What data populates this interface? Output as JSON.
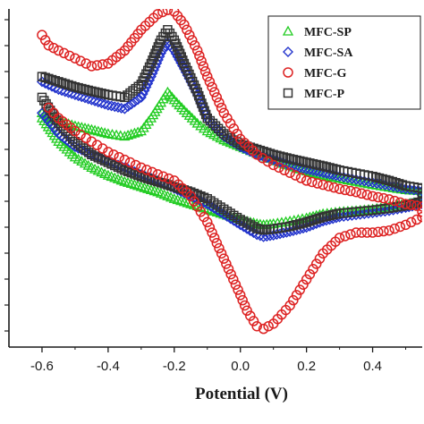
{
  "chart_data": {
    "type": "scatter",
    "title": "",
    "xlabel": "Potential (V)",
    "ylabel": "",
    "xlim": [
      -0.7,
      0.55
    ],
    "ylim": [
      -0.32,
      0.33
    ],
    "x_ticks": [
      -0.6,
      -0.4,
      -0.2,
      0.0,
      0.2,
      0.4
    ],
    "x_tick_labels": [
      "-0.6",
      "-0.4",
      "-0.2",
      "0.0",
      "0.2",
      "0.4"
    ],
    "grid": false,
    "legend": {
      "position": "top-right"
    },
    "series": [
      {
        "name": "MFC-SP",
        "color": "#22cc22",
        "marker": "triangle",
        "x": [
          -0.6,
          -0.55,
          -0.5,
          -0.45,
          -0.4,
          -0.35,
          -0.3,
          -0.27,
          -0.24,
          -0.22,
          -0.2,
          -0.17,
          -0.13,
          -0.1,
          -0.05,
          0.0,
          0.05,
          0.1,
          0.15,
          0.2,
          0.25,
          0.3,
          0.35,
          0.4,
          0.45,
          0.5,
          0.55,
          0.55,
          0.5,
          0.45,
          0.4,
          0.35,
          0.3,
          0.25,
          0.2,
          0.15,
          0.1,
          0.07,
          0.05,
          0.0,
          -0.05,
          -0.1,
          -0.15,
          -0.2,
          -0.25,
          -0.3,
          -0.35,
          -0.4,
          -0.45,
          -0.5,
          -0.55,
          -0.6
        ],
        "y": [
          0.13,
          0.115,
          0.105,
          0.098,
          0.09,
          0.085,
          0.095,
          0.12,
          0.15,
          0.17,
          0.155,
          0.135,
          0.11,
          0.095,
          0.078,
          0.065,
          0.052,
          0.04,
          0.028,
          0.018,
          0.01,
          0.004,
          -0.002,
          -0.008,
          -0.013,
          -0.018,
          -0.02,
          -0.04,
          -0.045,
          -0.05,
          -0.055,
          -0.058,
          -0.06,
          -0.064,
          -0.072,
          -0.078,
          -0.083,
          -0.085,
          -0.083,
          -0.075,
          -0.065,
          -0.055,
          -0.045,
          -0.035,
          -0.022,
          -0.012,
          -0.002,
          0.01,
          0.025,
          0.045,
          0.075,
          0.12
        ]
      },
      {
        "name": "MFC-SA",
        "color": "#2233cc",
        "marker": "diamond",
        "x": [
          -0.6,
          -0.55,
          -0.5,
          -0.45,
          -0.4,
          -0.35,
          -0.3,
          -0.27,
          -0.24,
          -0.22,
          -0.2,
          -0.17,
          -0.13,
          -0.1,
          -0.05,
          0.0,
          0.05,
          0.1,
          0.15,
          0.2,
          0.25,
          0.3,
          0.35,
          0.4,
          0.45,
          0.5,
          0.55,
          0.55,
          0.5,
          0.45,
          0.4,
          0.35,
          0.3,
          0.25,
          0.2,
          0.15,
          0.1,
          0.07,
          0.05,
          0.0,
          -0.05,
          -0.1,
          -0.15,
          -0.2,
          -0.25,
          -0.3,
          -0.35,
          -0.4,
          -0.45,
          -0.5,
          -0.55,
          -0.6
        ],
        "y": [
          0.19,
          0.175,
          0.165,
          0.155,
          0.145,
          0.138,
          0.16,
          0.2,
          0.245,
          0.265,
          0.25,
          0.215,
          0.165,
          0.12,
          0.085,
          0.065,
          0.05,
          0.04,
          0.03,
          0.022,
          0.015,
          0.008,
          0.002,
          -0.004,
          -0.01,
          -0.016,
          -0.02,
          -0.045,
          -0.052,
          -0.058,
          -0.062,
          -0.066,
          -0.07,
          -0.078,
          -0.09,
          -0.098,
          -0.105,
          -0.108,
          -0.104,
          -0.085,
          -0.065,
          -0.045,
          -0.03,
          -0.015,
          0.0,
          0.012,
          0.025,
          0.038,
          0.05,
          0.065,
          0.09,
          0.13
        ]
      },
      {
        "name": "MFC-G",
        "color": "#dd2222",
        "marker": "circle",
        "x": [
          -0.6,
          -0.58,
          -0.55,
          -0.5,
          -0.45,
          -0.4,
          -0.35,
          -0.3,
          -0.25,
          -0.22,
          -0.2,
          -0.17,
          -0.13,
          -0.1,
          -0.05,
          0.0,
          0.05,
          0.1,
          0.15,
          0.2,
          0.25,
          0.3,
          0.35,
          0.4,
          0.45,
          0.5,
          0.55,
          0.55,
          0.5,
          0.45,
          0.4,
          0.35,
          0.3,
          0.25,
          0.2,
          0.15,
          0.1,
          0.07,
          0.05,
          0.02,
          0.0,
          -0.05,
          -0.1,
          -0.15,
          -0.2,
          -0.25,
          -0.3,
          -0.35,
          -0.4,
          -0.45,
          -0.5,
          -0.55,
          -0.58
        ],
        "y": [
          0.28,
          0.26,
          0.25,
          0.235,
          0.22,
          0.225,
          0.25,
          0.29,
          0.32,
          0.328,
          0.325,
          0.3,
          0.25,
          0.2,
          0.13,
          0.08,
          0.05,
          0.03,
          0.015,
          0.0,
          -0.008,
          -0.016,
          -0.022,
          -0.03,
          -0.036,
          -0.045,
          -0.05,
          -0.07,
          -0.085,
          -0.096,
          -0.1,
          -0.1,
          -0.11,
          -0.14,
          -0.19,
          -0.24,
          -0.275,
          -0.285,
          -0.28,
          -0.25,
          -0.22,
          -0.15,
          -0.08,
          -0.03,
          0.0,
          0.012,
          0.025,
          0.04,
          0.055,
          0.075,
          0.095,
          0.12,
          0.14
        ]
      },
      {
        "name": "MFC-P",
        "color": "#333333",
        "marker": "square",
        "x": [
          -0.6,
          -0.55,
          -0.5,
          -0.45,
          -0.4,
          -0.35,
          -0.3,
          -0.27,
          -0.24,
          -0.22,
          -0.2,
          -0.17,
          -0.13,
          -0.1,
          -0.05,
          0.0,
          0.05,
          0.1,
          0.15,
          0.2,
          0.25,
          0.3,
          0.35,
          0.4,
          0.45,
          0.5,
          0.55,
          0.55,
          0.5,
          0.45,
          0.4,
          0.35,
          0.3,
          0.25,
          0.2,
          0.15,
          0.1,
          0.07,
          0.05,
          0.0,
          -0.05,
          -0.1,
          -0.15,
          -0.2,
          -0.25,
          -0.3,
          -0.35,
          -0.4,
          -0.45,
          -0.5,
          -0.55,
          -0.6
        ],
        "y": [
          0.2,
          0.19,
          0.18,
          0.172,
          0.165,
          0.16,
          0.185,
          0.225,
          0.27,
          0.29,
          0.27,
          0.225,
          0.17,
          0.12,
          0.09,
          0.07,
          0.06,
          0.05,
          0.042,
          0.035,
          0.028,
          0.02,
          0.014,
          0.008,
          0.0,
          -0.01,
          -0.015,
          -0.04,
          -0.048,
          -0.053,
          -0.057,
          -0.06,
          -0.063,
          -0.07,
          -0.08,
          -0.088,
          -0.093,
          -0.095,
          -0.092,
          -0.075,
          -0.055,
          -0.035,
          -0.022,
          -0.012,
          -0.002,
          0.008,
          0.02,
          0.035,
          0.05,
          0.075,
          0.11,
          0.16
        ]
      }
    ]
  }
}
